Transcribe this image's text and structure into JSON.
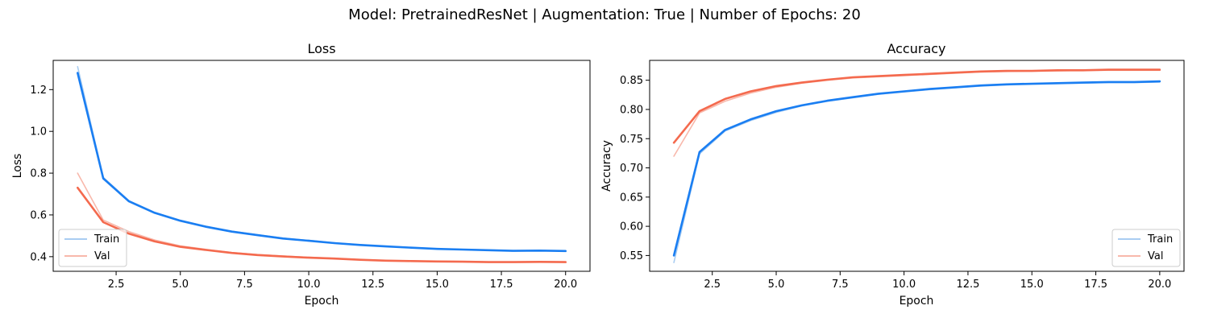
{
  "figure": {
    "title": "Model: PretrainedResNet | Augmentation: True | Number of Epochs: 20"
  },
  "colors": {
    "train_main": "#1a7ef2",
    "train_light": "#a9cdf2",
    "val_main": "#f46a4e",
    "val_light": "#f8b8ab"
  },
  "chart_data": [
    {
      "type": "line",
      "title": "Loss",
      "xlabel": "Epoch",
      "ylabel": "Loss",
      "xlim": [
        0.05,
        20.95
      ],
      "ylim": [
        0.33,
        1.34
      ],
      "xticks": [
        2.5,
        5.0,
        7.5,
        10.0,
        12.5,
        15.0,
        17.5,
        20.0
      ],
      "xtick_labels": [
        "2.5",
        "5.0",
        "7.5",
        "10.0",
        "12.5",
        "15.0",
        "17.5",
        "20.0"
      ],
      "yticks": [
        0.4,
        0.6,
        0.8,
        1.0,
        1.2
      ],
      "ytick_labels": [
        "0.4",
        "0.6",
        "0.8",
        "1.0",
        "1.2"
      ],
      "grid": false,
      "legend": {
        "position": "lower-left",
        "entries": [
          "Train",
          "Val"
        ]
      },
      "x": [
        1,
        2,
        3,
        4,
        5,
        6,
        7,
        8,
        9,
        10,
        11,
        12,
        13,
        14,
        15,
        16,
        17,
        18,
        19,
        20
      ],
      "series": [
        {
          "name": "Train",
          "role": "mean",
          "values": [
            1.28,
            0.775,
            0.665,
            0.61,
            0.572,
            0.543,
            0.52,
            0.503,
            0.487,
            0.476,
            0.465,
            0.456,
            0.449,
            0.443,
            0.437,
            0.434,
            0.431,
            0.428,
            0.429,
            0.427
          ]
        },
        {
          "name": "Val",
          "role": "mean",
          "values": [
            0.73,
            0.565,
            0.51,
            0.473,
            0.447,
            0.432,
            0.418,
            0.408,
            0.401,
            0.395,
            0.391,
            0.385,
            0.381,
            0.379,
            0.377,
            0.376,
            0.374,
            0.374,
            0.375,
            0.374
          ]
        },
        {
          "name": "Train",
          "role": "run",
          "values": [
            1.31,
            0.78,
            0.668,
            0.612,
            0.574,
            0.546,
            0.522,
            0.505,
            0.489,
            0.478,
            0.466,
            0.457,
            0.45,
            0.444,
            0.438,
            0.435,
            0.432,
            0.429,
            0.43,
            0.428
          ]
        },
        {
          "name": "Val",
          "role": "run",
          "values": [
            0.8,
            0.575,
            0.52,
            0.48,
            0.452,
            0.435,
            0.42,
            0.41,
            0.403,
            0.397,
            0.392,
            0.386,
            0.382,
            0.38,
            0.378,
            0.377,
            0.375,
            0.375,
            0.376,
            0.375
          ]
        }
      ]
    },
    {
      "type": "line",
      "title": "Accuracy",
      "xlabel": "Epoch",
      "ylabel": "Accuracy",
      "xlim": [
        0.05,
        20.95
      ],
      "ylim": [
        0.523,
        0.884
      ],
      "xticks": [
        2.5,
        5.0,
        7.5,
        10.0,
        12.5,
        15.0,
        17.5,
        20.0
      ],
      "xtick_labels": [
        "2.5",
        "5.0",
        "7.5",
        "10.0",
        "12.5",
        "15.0",
        "17.5",
        "20.0"
      ],
      "yticks": [
        0.55,
        0.6,
        0.65,
        0.7,
        0.75,
        0.8,
        0.85
      ],
      "ytick_labels": [
        "0.55",
        "0.60",
        "0.65",
        "0.70",
        "0.75",
        "0.80",
        "0.85"
      ],
      "grid": false,
      "legend": {
        "position": "lower-right",
        "entries": [
          "Train",
          "Val"
        ]
      },
      "x": [
        1,
        2,
        3,
        4,
        5,
        6,
        7,
        8,
        9,
        10,
        11,
        12,
        13,
        14,
        15,
        16,
        17,
        18,
        19,
        20
      ],
      "series": [
        {
          "name": "Train",
          "role": "mean",
          "values": [
            0.55,
            0.727,
            0.765,
            0.783,
            0.797,
            0.807,
            0.815,
            0.821,
            0.827,
            0.831,
            0.835,
            0.838,
            0.841,
            0.843,
            0.844,
            0.845,
            0.846,
            0.847,
            0.847,
            0.848
          ]
        },
        {
          "name": "Val",
          "role": "mean",
          "values": [
            0.743,
            0.797,
            0.818,
            0.831,
            0.84,
            0.846,
            0.851,
            0.855,
            0.857,
            0.859,
            0.861,
            0.863,
            0.865,
            0.866,
            0.866,
            0.867,
            0.867,
            0.868,
            0.868,
            0.868
          ]
        },
        {
          "name": "Train",
          "role": "run",
          "values": [
            0.538,
            0.724,
            0.763,
            0.781,
            0.795,
            0.806,
            0.814,
            0.82,
            0.826,
            0.83,
            0.834,
            0.837,
            0.84,
            0.842,
            0.843,
            0.844,
            0.845,
            0.846,
            0.846,
            0.847
          ]
        },
        {
          "name": "Val",
          "role": "run",
          "values": [
            0.72,
            0.794,
            0.814,
            0.828,
            0.838,
            0.845,
            0.85,
            0.854,
            0.856,
            0.858,
            0.86,
            0.862,
            0.864,
            0.865,
            0.866,
            0.866,
            0.867,
            0.867,
            0.867,
            0.867
          ]
        }
      ]
    }
  ]
}
